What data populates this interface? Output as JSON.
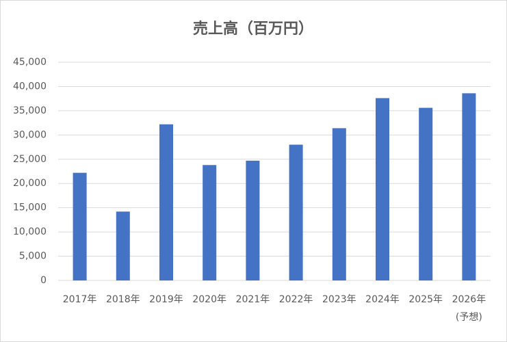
{
  "chart_data": {
    "type": "bar",
    "title": "売上高（百万円）",
    "categories": [
      "2017年",
      "2018年",
      "2019年",
      "2020年",
      "2021年",
      "2022年",
      "2023年",
      "2024年",
      "2025年",
      "2026年\n(予想)"
    ],
    "values": [
      22200,
      14200,
      32200,
      23800,
      24700,
      28000,
      31400,
      37600,
      35600,
      38600
    ],
    "color": "#4472c4",
    "ylim": [
      0,
      45000
    ],
    "yticks": [
      0,
      {
        "value": 5000,
        "label": "5,000"
      },
      {
        "value": 10000,
        "label": "10,000"
      },
      {
        "value": 15000,
        "label": "15,000"
      },
      {
        "value": 20000,
        "label": "20,000"
      },
      {
        "value": 25000,
        "label": "25,000"
      },
      {
        "value": 30000,
        "label": "30,000"
      },
      {
        "value": 35000,
        "label": "35,000"
      },
      {
        "value": 40000,
        "label": "40,000"
      },
      {
        "value": 45000,
        "label": "45,000"
      }
    ],
    "grid": true
  }
}
